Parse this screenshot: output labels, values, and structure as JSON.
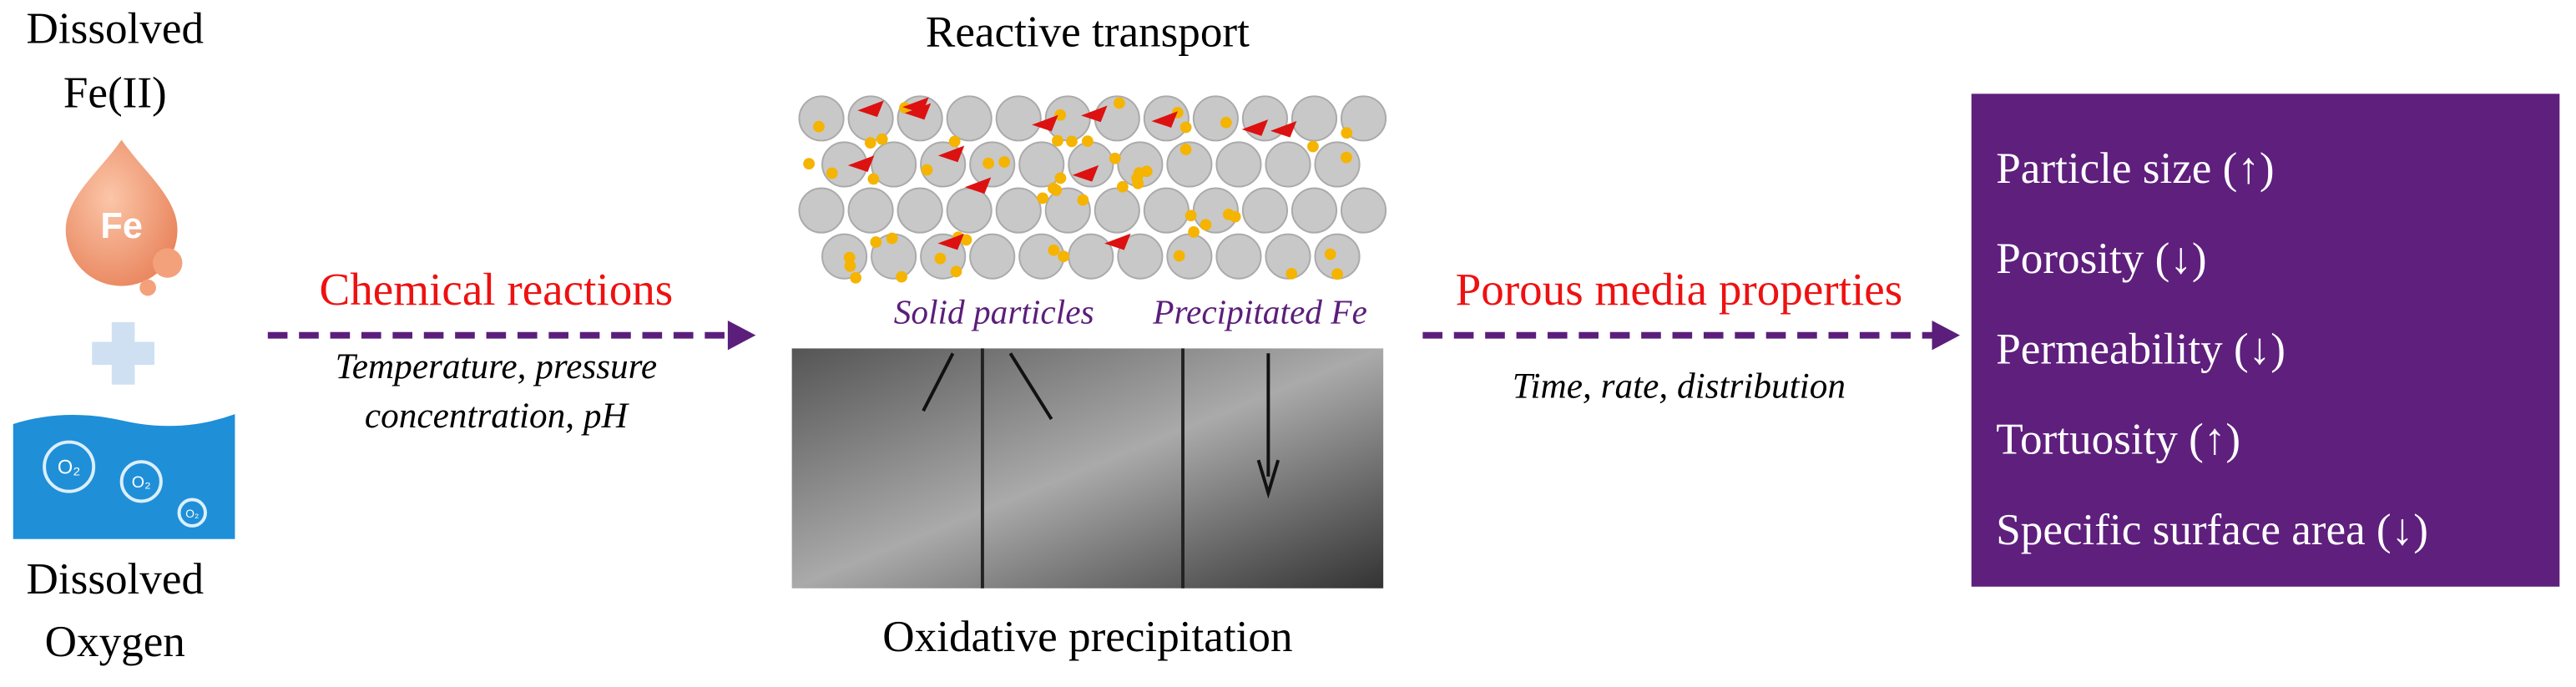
{
  "left": {
    "top_label": [
      "Dissolved",
      "Fe(II)"
    ],
    "icon_label": "Fe",
    "bottom_label": [
      "Dissolved",
      "Oxygen"
    ],
    "bubbles": [
      "O₂",
      "O₂",
      "O₂"
    ]
  },
  "arrow1": {
    "title": "Chemical reactions",
    "subtitle": [
      "Temperature, pressure",
      "concentration, pH"
    ]
  },
  "center": {
    "top_title": "Reactive transport",
    "annotations": [
      "Solid particles",
      "Precipitated Fe"
    ],
    "bottom_title": "Oxidative precipitation"
  },
  "arrow2": {
    "title": "Porous media properties",
    "subtitle": "Time, rate, distribution"
  },
  "properties": [
    "Particle size (↑)",
    "Porosity (↓)",
    "Permeability (↓)",
    "Tortuosity (↑)",
    "Specific surface area (↓)"
  ]
}
